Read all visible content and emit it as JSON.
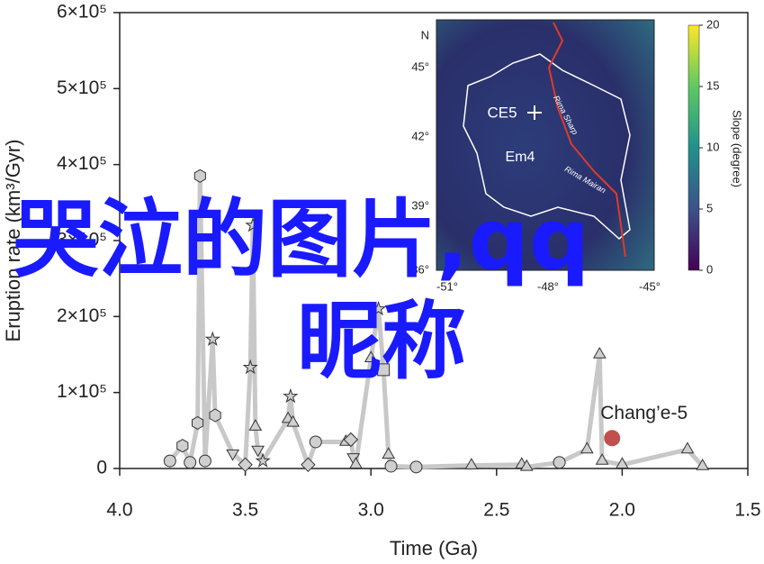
{
  "chart_data": {
    "type": "line",
    "xlabel": "Time (Ga)",
    "ylabel": "Eruption rate (km³/Gyr)",
    "xlim": [
      4.0,
      1.5
    ],
    "xticks": [
      {
        "value": 4,
        "label": "4.0"
      },
      3.5,
      {
        "value": 3,
        "label": "3.0"
      },
      2.5,
      {
        "value": 2,
        "label": "2.0"
      },
      1.5
    ],
    "ylim": [
      0,
      600000
    ],
    "yticks": [
      0,
      {
        "value": 100000,
        "label": "1×10⁵"
      },
      {
        "value": 200000,
        "label": "2×10⁵"
      },
      {
        "value": 300000,
        "label": "3×10⁵"
      },
      {
        "value": 400000,
        "label": "4×10⁵"
      },
      {
        "value": 500000,
        "label": "5×10⁵"
      },
      {
        "value": 600000,
        "label": "6×10⁵"
      }
    ],
    "x": [
      3.8,
      3.75,
      3.72,
      3.69,
      3.68,
      3.66,
      3.63,
      3.62,
      3.55,
      3.5,
      3.48,
      3.47,
      3.46,
      3.45,
      3.43,
      3.33,
      3.32,
      3.31,
      3.25,
      3.22,
      3.1,
      3.08,
      3.07,
      3.06,
      3.0,
      2.97,
      2.95,
      2.93,
      2.92,
      2.82,
      2.6,
      2.4,
      2.38,
      2.25,
      2.14,
      2.09,
      2.08,
      2.0,
      1.74,
      1.68
    ],
    "series": [
      {
        "color": "#c8c8c8",
        "values": [
          10000,
          30000,
          8000,
          60000,
          385000,
          10000,
          170000,
          70000,
          20000,
          5000,
          133000,
          320000,
          55000,
          25000,
          10000,
          65000,
          95000,
          60000,
          5000,
          35000,
          35000,
          38000,
          15000,
          5000,
          145000,
          210000,
          130000,
          18000,
          3000,
          2000,
          4000,
          5000,
          2000,
          8000,
          25000,
          150000,
          10000,
          5000,
          25000,
          3000
        ]
      }
    ],
    "markers": [
      "circle",
      "hexagon",
      "circle",
      "hexagon",
      "hexagon",
      "circle",
      "star",
      "hexagon",
      "triangle-down",
      "diamond",
      "star",
      "star",
      "triangle",
      "triangle-down",
      "star",
      "triangle",
      "star",
      "triangle",
      "diamond",
      "circle",
      "triangle",
      "diamond",
      "triangle-down",
      "triangle",
      "triangle",
      "star",
      "square",
      "triangle",
      "circle",
      "circle",
      "triangle",
      "triangle",
      "triangle",
      "circle",
      "triangle",
      "triangle",
      "triangle",
      "triangle",
      "triangle",
      "triangle"
    ],
    "highlight": {
      "x": 2.04,
      "value": 40000,
      "color": "#c0504d",
      "label": "Chang’e-5"
    }
  },
  "inset": {
    "lat_labels": [
      "N",
      "45°",
      "42°",
      "39°",
      "36°"
    ],
    "lon_labels": [
      "-51°",
      "-48°",
      "-45°"
    ],
    "map_labels": [
      "CE5",
      "Em4",
      "Rima Sharp",
      "Rima Mairan"
    ],
    "colorbar": {
      "label": "Slope (degree)",
      "lim": [
        0,
        20
      ],
      "ticks": [
        0,
        5,
        10,
        15,
        20
      ]
    }
  },
  "overlay": [
    "哭泣的图片,qq",
    "昵称"
  ]
}
